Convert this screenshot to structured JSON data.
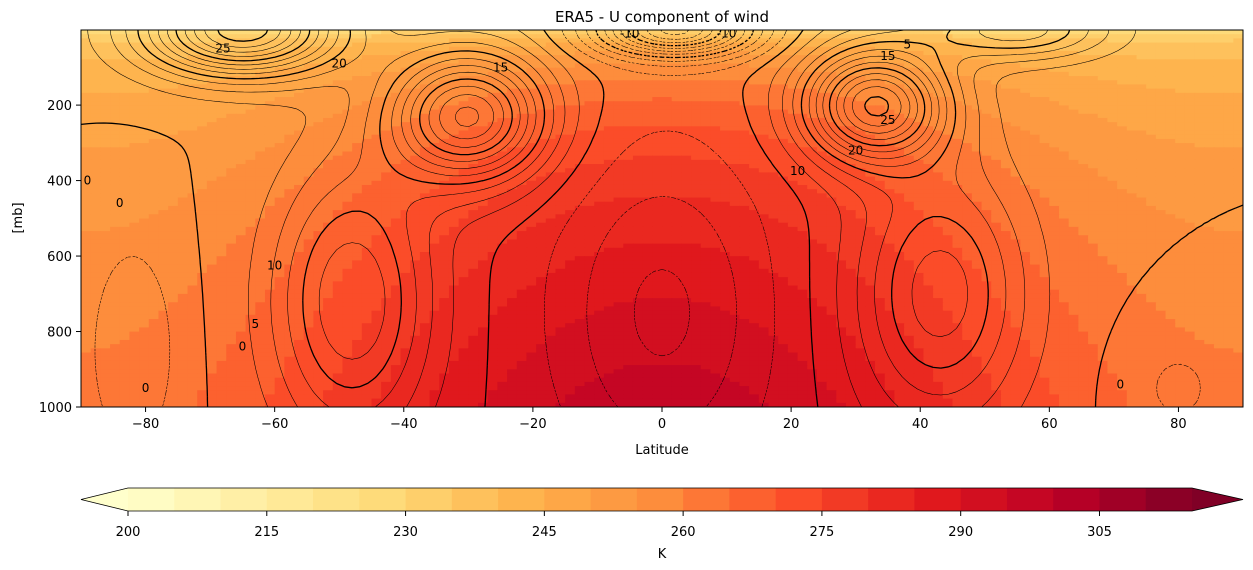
{
  "chart_data": {
    "type": "heatmap",
    "title": "ERA5 - U component of wind",
    "xlabel": "Latitude",
    "ylabel": "[mb]",
    "xlim": [
      -90,
      90
    ],
    "ylim": [
      1000,
      1
    ],
    "x_ticks": [
      -80,
      -60,
      -40,
      -20,
      0,
      20,
      40,
      60,
      80
    ],
    "y_ticks": [
      200,
      400,
      600,
      800,
      1000
    ],
    "grid": false,
    "colormap": "YlOrRd",
    "colorbar": {
      "label": "K",
      "min": 200,
      "max": 315,
      "step": 5,
      "ticks": [
        200,
        215,
        230,
        245,
        260,
        275,
        290,
        305
      ],
      "extend": "both"
    },
    "contour_labels": [
      {
        "lat": -68,
        "p": 50,
        "text": "25"
      },
      {
        "lat": -50,
        "p": 90,
        "text": "20"
      },
      {
        "lat": -25,
        "p": 100,
        "text": "15"
      },
      {
        "lat": -5,
        "p": 10,
        "text": "-10"
      },
      {
        "lat": 10,
        "p": 10,
        "text": "-10"
      },
      {
        "lat": 38,
        "p": 40,
        "text": "5"
      },
      {
        "lat": 35,
        "p": 70,
        "text": "15"
      },
      {
        "lat": 35,
        "p": 240,
        "text": "25"
      },
      {
        "lat": 30,
        "p": 320,
        "text": "20"
      },
      {
        "lat": 21,
        "p": 375,
        "text": "10"
      },
      {
        "lat": -60,
        "p": 625,
        "text": "10"
      },
      {
        "lat": -63,
        "p": 780,
        "text": "5"
      },
      {
        "lat": -65,
        "p": 840,
        "text": "0"
      },
      {
        "lat": -84,
        "p": 460,
        "text": "0"
      },
      {
        "lat": -89,
        "p": 400,
        "text": "0"
      },
      {
        "lat": -80,
        "p": 950,
        "text": "0"
      },
      {
        "lat": 71,
        "p": 940,
        "text": "0"
      }
    ]
  },
  "colors": {
    "contour": "#000000",
    "frame": "#000000"
  }
}
